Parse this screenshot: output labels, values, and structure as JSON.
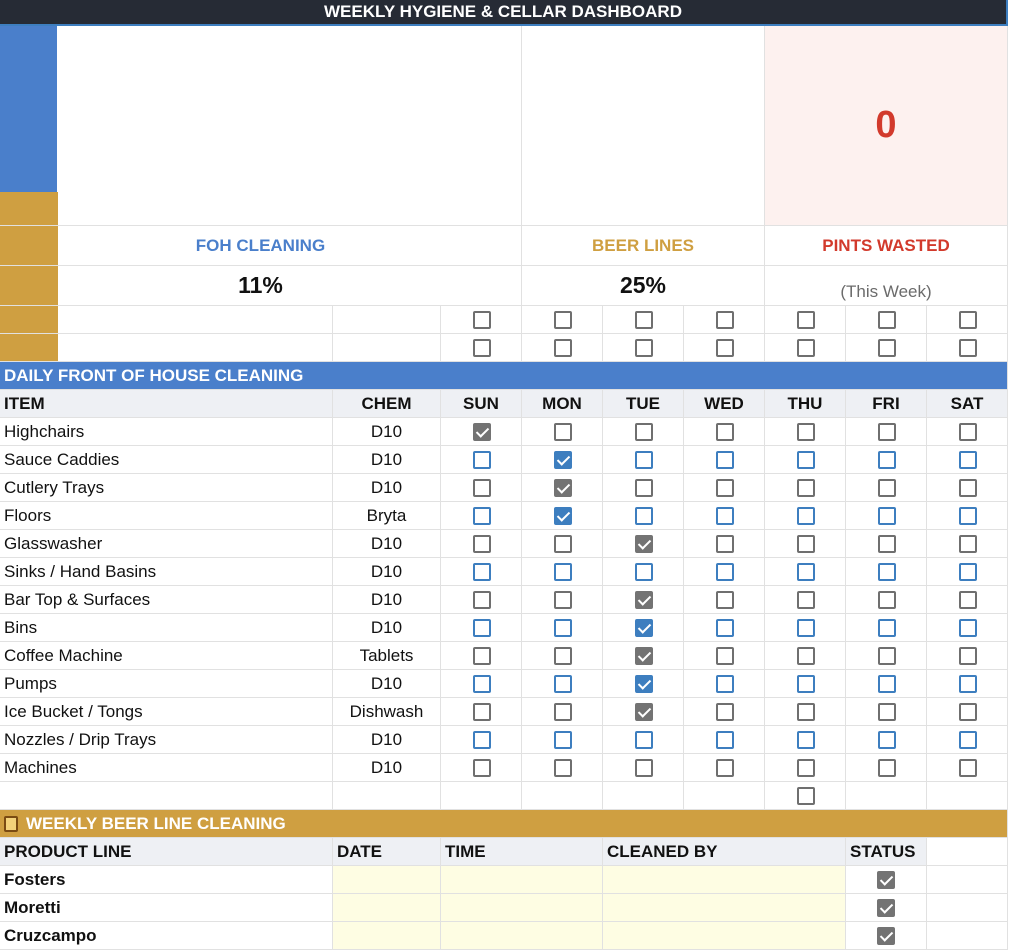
{
  "header": {
    "title": "WEEKLY HYGIENE & CELLAR DASHBOARD"
  },
  "dashboard": {
    "foh": {
      "label": "FOH CLEANING",
      "value": "11%"
    },
    "beer": {
      "label": "BEER LINES",
      "value": "25%"
    },
    "pints": {
      "label": "PINTS WASTED",
      "value": 0,
      "note": "(This Week)"
    }
  },
  "extra_checks": [
    [
      false,
      false,
      false,
      false,
      false,
      false,
      false
    ],
    [
      false,
      false,
      false,
      false,
      false,
      false,
      false
    ]
  ],
  "foh_section": {
    "title": "DAILY FRONT OF HOUSE CLEANING",
    "columns": [
      "ITEM",
      "CHEM",
      "SUN",
      "MON",
      "TUE",
      "WED",
      "THU",
      "FRI",
      "SAT"
    ],
    "rows": [
      {
        "item": "Highchairs",
        "chem": "D10",
        "checks": [
          true,
          false,
          false,
          false,
          false,
          false,
          false
        ]
      },
      {
        "item": "Sauce Caddies",
        "chem": "D10",
        "checks": [
          false,
          true,
          false,
          false,
          false,
          false,
          false
        ]
      },
      {
        "item": "Cutlery Trays",
        "chem": "D10",
        "checks": [
          false,
          true,
          false,
          false,
          false,
          false,
          false
        ]
      },
      {
        "item": "Floors",
        "chem": "Bryta",
        "checks": [
          false,
          true,
          false,
          false,
          false,
          false,
          false
        ]
      },
      {
        "item": "Glasswasher",
        "chem": "D10",
        "checks": [
          false,
          false,
          true,
          false,
          false,
          false,
          false
        ]
      },
      {
        "item": "Sinks / Hand Basins",
        "chem": "D10",
        "checks": [
          false,
          false,
          false,
          false,
          false,
          false,
          false
        ]
      },
      {
        "item": "Bar Top & Surfaces",
        "chem": "D10",
        "checks": [
          false,
          false,
          true,
          false,
          false,
          false,
          false
        ]
      },
      {
        "item": "Bins",
        "chem": "D10",
        "checks": [
          false,
          false,
          true,
          false,
          false,
          false,
          false
        ]
      },
      {
        "item": "Coffee Machine",
        "chem": "Tablets",
        "checks": [
          false,
          false,
          true,
          false,
          false,
          false,
          false
        ]
      },
      {
        "item": "Pumps",
        "chem": "D10",
        "checks": [
          false,
          false,
          true,
          false,
          false,
          false,
          false
        ]
      },
      {
        "item": "Ice Bucket / Tongs",
        "chem": "Dishwash",
        "checks": [
          false,
          false,
          true,
          false,
          false,
          false,
          false
        ]
      },
      {
        "item": "Nozzles / Drip Trays",
        "chem": "D10",
        "checks": [
          false,
          false,
          false,
          false,
          false,
          false,
          false
        ]
      },
      {
        "item": "Machines",
        "chem": "D10",
        "checks": [
          false,
          false,
          false,
          false,
          false,
          false,
          false
        ]
      }
    ],
    "extra_check": false
  },
  "beer_section": {
    "title": "WEEKLY BEER LINE CLEANING",
    "columns": [
      "PRODUCT LINE",
      "DATE",
      "TIME",
      "CLEANED BY",
      "STATUS"
    ],
    "rows": [
      {
        "product": "Fosters",
        "status": true
      },
      {
        "product": "Moretti",
        "status": true
      },
      {
        "product": "Cruzcampo",
        "status": true
      }
    ]
  }
}
